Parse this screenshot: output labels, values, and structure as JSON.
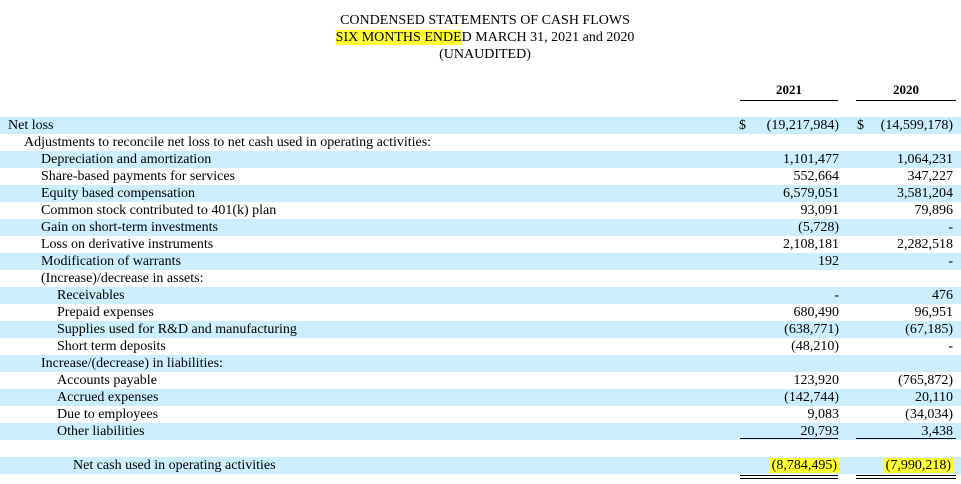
{
  "header": {
    "title": "CONDENSED STATEMENTS OF CASH FLOWS",
    "subtitle_highlight": "SIX MONTHS ENDE",
    "subtitle_rest": "D MARCH 31, 2021 and 2020",
    "note": "(UNAUDITED)"
  },
  "columns": {
    "y1": "2021",
    "y2": "2020"
  },
  "rows": [
    {
      "label": "Net loss",
      "indent": 0,
      "shade": true,
      "dollar1": "$",
      "v1": "(19,217,984)",
      "dollar2": "$",
      "v2": "(14,599,178)"
    },
    {
      "label": "Adjustments to reconcile net loss to net cash used in operating activities:",
      "indent": 1,
      "shade": false,
      "v1": "",
      "v2": ""
    },
    {
      "label": "Depreciation and amortization",
      "indent": 2,
      "shade": true,
      "v1": "1,101,477",
      "v2": "1,064,231"
    },
    {
      "label": "Share-based payments for services",
      "indent": 2,
      "shade": false,
      "v1": "552,664",
      "v2": "347,227"
    },
    {
      "label": "Equity based compensation",
      "indent": 2,
      "shade": true,
      "v1": "6,579,051",
      "v2": "3,581,204"
    },
    {
      "label": "Common stock contributed to 401(k) plan",
      "indent": 2,
      "shade": false,
      "v1": "93,091",
      "v2": "79,896"
    },
    {
      "label": "Gain on short-term investments",
      "indent": 2,
      "shade": true,
      "v1": "(5,728)",
      "v2": "-"
    },
    {
      "label": "Loss on derivative instruments",
      "indent": 2,
      "shade": false,
      "v1": "2,108,181",
      "v2": "2,282,518"
    },
    {
      "label": "Modification of warrants",
      "indent": 2,
      "shade": true,
      "v1": "192",
      "v2": "-"
    },
    {
      "label": "(Increase)/decrease in assets:",
      "indent": 2,
      "shade": false,
      "v1": "",
      "v2": ""
    },
    {
      "label": "Receivables",
      "indent": 3,
      "shade": true,
      "v1": "-",
      "v2": "476"
    },
    {
      "label": "Prepaid expenses",
      "indent": 3,
      "shade": false,
      "v1": "680,490",
      "v2": "96,951"
    },
    {
      "label": "Supplies used for R&D and manufacturing",
      "indent": 3,
      "shade": true,
      "v1": "(638,771)",
      "v2": "(67,185)"
    },
    {
      "label": "Short term deposits",
      "indent": 3,
      "shade": false,
      "v1": "(48,210)",
      "v2": "-"
    },
    {
      "label": "Increase/(decrease) in liabilities:",
      "indent": 2,
      "shade": true,
      "v1": "",
      "v2": ""
    },
    {
      "label": "Accounts payable",
      "indent": 3,
      "shade": false,
      "v1": "123,920",
      "v2": "(765,872)"
    },
    {
      "label": "Accrued expenses",
      "indent": 3,
      "shade": true,
      "v1": "(142,744)",
      "v2": "20,110"
    },
    {
      "label": "Due to employees",
      "indent": 3,
      "shade": false,
      "v1": "9,083",
      "v2": "(34,034)"
    },
    {
      "label": "Other liabilities",
      "indent": 3,
      "shade": true,
      "v1": "20,793",
      "v2": "3,438"
    }
  ],
  "total": {
    "label": "Net cash used in operating activities",
    "v1": "(8,784,495)",
    "v2": "(7,990,218)"
  }
}
